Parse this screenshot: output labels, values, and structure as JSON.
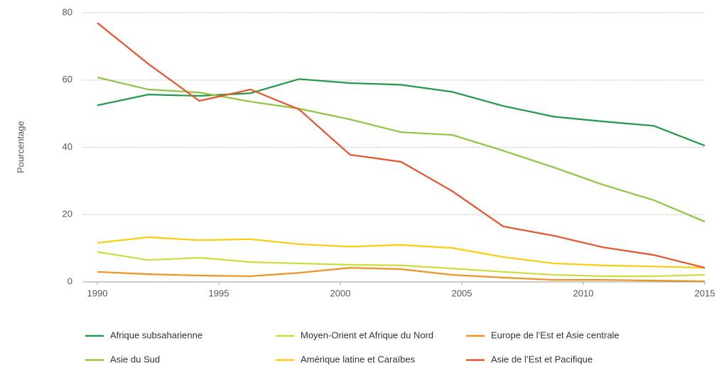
{
  "chart_data": {
    "type": "line",
    "y_label": "Pourcentage",
    "x": [
      1990,
      1992.1,
      1994.2,
      1996.3,
      1998.3,
      2000.4,
      2002.5,
      2004.6,
      2006.7,
      2008.8,
      2010.8,
      2012.9,
      2015
    ],
    "xlim": [
      1990,
      2015
    ],
    "xticks": [
      1990,
      1995,
      2000,
      2005,
      2010,
      2015
    ],
    "ylim": [
      0,
      80
    ],
    "yticks": [
      0,
      20,
      40,
      60,
      80
    ],
    "grid": true,
    "legend": "bottom",
    "series": [
      {
        "name": "Afrique subsaharienne",
        "color": "#1e9a48",
        "values": [
          52.5,
          55.7,
          55.3,
          56.1,
          60.3,
          59.1,
          58.6,
          56.5,
          52.3,
          49.1,
          47.7,
          46.4,
          40.5
        ]
      },
      {
        "name": "Moyen-Orient et Afrique du Nord",
        "color": "#cddc39",
        "values": [
          8.9,
          6.5,
          7.2,
          5.9,
          5.5,
          5.1,
          4.9,
          4.0,
          3.0,
          2.1,
          1.7,
          1.7,
          2.1
        ]
      },
      {
        "name": "Europe de l’Est et Asie centrale",
        "color": "#ef921e",
        "values": [
          3.0,
          2.3,
          1.9,
          1.7,
          2.7,
          4.2,
          3.8,
          2.1,
          1.3,
          0.6,
          0.6,
          0.4,
          0.2
        ]
      },
      {
        "name": "Asie du Sud",
        "color": "#8dc63f",
        "values": [
          60.8,
          57.2,
          56.3,
          53.6,
          51.5,
          48.3,
          44.5,
          43.7,
          39.0,
          34.0,
          28.9,
          24.3,
          17.9
        ]
      },
      {
        "name": "Amérique latine et Caraïbes",
        "color": "#fdcd0a",
        "values": [
          11.6,
          13.3,
          12.4,
          12.7,
          11.2,
          10.5,
          11.0,
          10.1,
          7.4,
          5.5,
          4.9,
          4.6,
          4.2
        ]
      },
      {
        "name": "Asie de l’Est et Pacifique",
        "color": "#e8542a",
        "values": [
          77.0,
          64.8,
          53.8,
          57.2,
          51.3,
          37.8,
          35.7,
          27.0,
          16.5,
          13.7,
          10.3,
          8.0,
          4.2
        ]
      }
    ]
  }
}
